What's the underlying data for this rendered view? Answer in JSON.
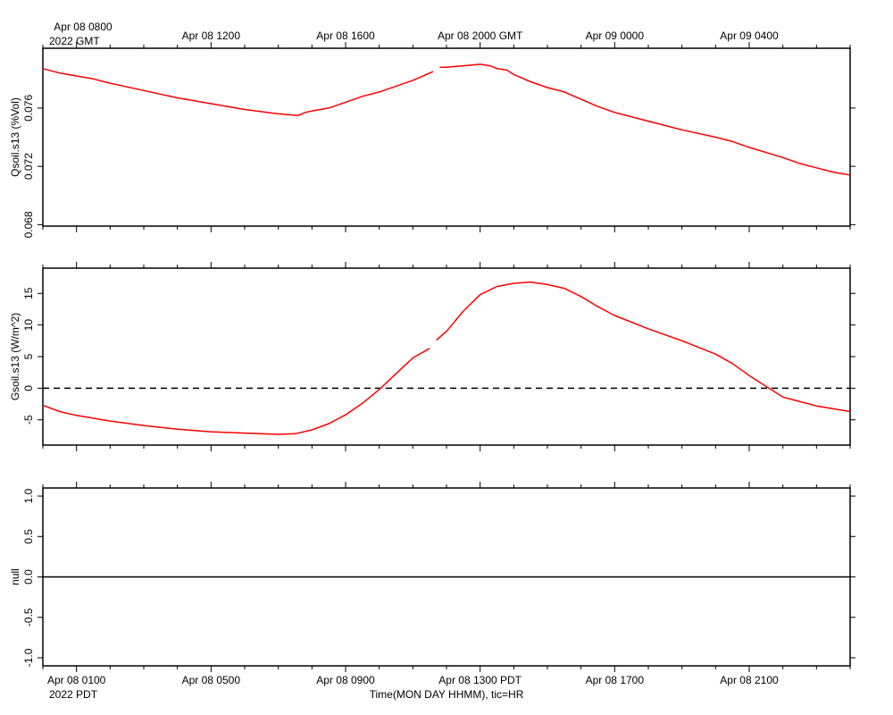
{
  "header": {
    "gmt_first_tick": "Apr 08 0800",
    "gmt_year_label": "2022 GMT"
  },
  "footer": {
    "pdt_year_label": "2022 PDT",
    "x_axis_title": "Time(MON DAY HHMM), tic=HR"
  },
  "colors": {
    "series": "#ff0000",
    "axes": "#000000",
    "zero_line": "#000000"
  },
  "chart_data": [
    {
      "type": "line",
      "ylabel": "Qsoil.s13 (%Vol)",
      "ylim": [
        0.0679,
        0.0801
      ],
      "yticks": [
        0.068,
        0.072,
        0.076
      ],
      "ytick_labels": [
        "0.068",
        "0.072",
        "0.076"
      ],
      "x_unit": "hours since Apr 08 0000 PDT",
      "xlim": [
        0.0,
        24.0
      ],
      "x_top_ticks": [
        1,
        5,
        9,
        13,
        17,
        21
      ],
      "x_top_labels": [
        "Apr 08 0800",
        "Apr 08 1200",
        "Apr 08 1600",
        "Apr 08 2000 GMT",
        "Apr 09 0000",
        "Apr 09 0400"
      ],
      "series": [
        {
          "x": [
            0.0,
            0.5,
            1.0,
            1.5,
            2.0,
            3.0,
            4.0,
            5.0,
            6.0,
            7.0,
            7.5,
            7.6,
            7.8,
            8.0,
            8.5,
            9.0,
            9.5,
            10.0,
            10.5,
            11.0,
            11.5,
            11.6
          ],
          "y": [
            0.0787,
            0.0784,
            0.0782,
            0.078,
            0.0777,
            0.0772,
            0.0767,
            0.0763,
            0.0759,
            0.0756,
            0.0755,
            0.0755,
            0.0757,
            0.0758,
            0.076,
            0.0764,
            0.0768,
            0.0771,
            0.0775,
            0.0779,
            0.0784,
            0.0785
          ]
        },
        {
          "x": [
            11.8,
            12.0,
            12.5,
            13.0,
            13.3,
            13.5,
            13.8,
            14.0,
            14.2,
            14.5,
            15.0,
            15.5,
            16.0,
            16.5,
            17.0,
            18.0,
            19.0,
            20.0,
            20.5,
            21.0,
            22.0,
            22.5,
            23.0,
            23.5,
            24.0
          ],
          "y": [
            0.0788,
            0.0788,
            0.0789,
            0.079,
            0.0789,
            0.0787,
            0.0786,
            0.0783,
            0.0781,
            0.0778,
            0.0774,
            0.0771,
            0.0766,
            0.0761,
            0.0757,
            0.0751,
            0.0745,
            0.074,
            0.0737,
            0.0733,
            0.0726,
            0.0722,
            0.0719,
            0.0716,
            0.0714
          ]
        }
      ]
    },
    {
      "type": "line",
      "ylabel": "Gsoil.s13 (W/m^2)",
      "ylim": [
        -9.0,
        19.0
      ],
      "yticks": [
        -5,
        0,
        5,
        10,
        15
      ],
      "ytick_labels": [
        "-5",
        "0",
        "5",
        "10",
        "15"
      ],
      "xlim": [
        0.0,
        24.0
      ],
      "zero_line": {
        "y": 0,
        "style": "dashed"
      },
      "series": [
        {
          "x": [
            0.0,
            0.5,
            1.0,
            2.0,
            3.0,
            4.0,
            5.0,
            6.0,
            7.0,
            7.5,
            8.0,
            8.5,
            9.0,
            9.5,
            10.0,
            10.5,
            11.0,
            11.5
          ],
          "y": [
            -2.7,
            -3.7,
            -4.3,
            -5.2,
            -5.9,
            -6.5,
            -6.9,
            -7.1,
            -7.3,
            -7.2,
            -6.6,
            -5.6,
            -4.2,
            -2.4,
            -0.2,
            2.3,
            4.8,
            6.3
          ]
        },
        {
          "x": [
            11.7,
            12.0,
            12.5,
            13.0,
            13.5,
            14.0,
            14.5,
            15.0,
            15.5,
            16.0,
            16.5,
            17.0,
            18.0,
            19.0,
            20.0,
            20.5,
            21.0,
            21.5,
            22.0,
            23.0,
            24.0
          ],
          "y": [
            7.6,
            9.0,
            12.2,
            14.8,
            16.1,
            16.6,
            16.8,
            16.4,
            15.8,
            14.5,
            12.9,
            11.5,
            9.4,
            7.5,
            5.4,
            3.9,
            2.0,
            0.3,
            -1.4,
            -2.8,
            -3.7
          ]
        }
      ]
    },
    {
      "type": "line",
      "ylabel": "null",
      "ylim": [
        -1.1,
        1.1
      ],
      "yticks": [
        -1.0,
        -0.5,
        0.0,
        0.5,
        1.0
      ],
      "ytick_labels": [
        "-1.0",
        "-0.5",
        "0.0",
        "0.5",
        "1.0"
      ],
      "xlim": [
        0.0,
        24.0
      ],
      "x_bottom_ticks": [
        1,
        5,
        9,
        13,
        17,
        21
      ],
      "x_bottom_labels": [
        "Apr 08 0100",
        "Apr 08 0500",
        "Apr 08 0900",
        "Apr 08 1300 PDT",
        "Apr 08 1700",
        "Apr 08 2100"
      ],
      "series": [
        {
          "x": [
            0.0,
            24.0
          ],
          "y": [
            0.0,
            0.0
          ]
        }
      ]
    }
  ]
}
